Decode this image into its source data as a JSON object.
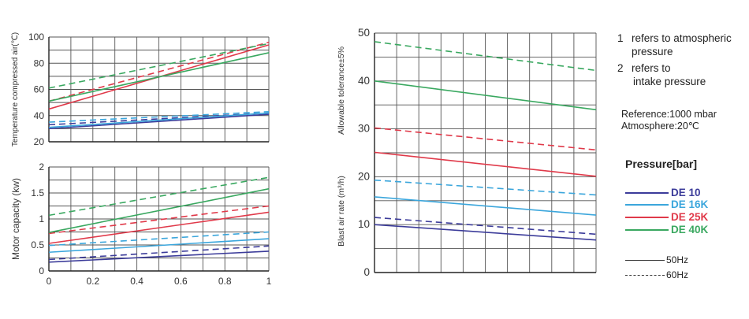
{
  "chart_data": [
    {
      "id": "temp",
      "type": "line",
      "title": "",
      "xlabel": "",
      "ylabel": "Temperature compressed air(℃)",
      "xlim": [
        0,
        1
      ],
      "ylim": [
        20,
        100
      ],
      "yticks": [
        "20",
        "40",
        "60",
        "80",
        "100"
      ],
      "xticks": [],
      "grid": true,
      "series": [
        {
          "name": "DE 10 50Hz",
          "color": "#3c3c9a",
          "dash": false,
          "x": [
            0,
            1
          ],
          "y": [
            30,
            41
          ]
        },
        {
          "name": "DE 10 60Hz",
          "color": "#3c3c9a",
          "dash": true,
          "x": [
            0,
            1
          ],
          "y": [
            33,
            42
          ]
        },
        {
          "name": "DE 16K 50Hz",
          "color": "#3ba6dc",
          "dash": false,
          "x": [
            0,
            1
          ],
          "y": [
            31,
            42
          ]
        },
        {
          "name": "DE 16K 60Hz",
          "color": "#3ba6dc",
          "dash": true,
          "x": [
            0,
            1
          ],
          "y": [
            35,
            43
          ]
        },
        {
          "name": "DE 25K 50Hz",
          "color": "#e03a4a",
          "dash": false,
          "x": [
            0,
            1
          ],
          "y": [
            45,
            94
          ]
        },
        {
          "name": "DE 25K 60Hz",
          "color": "#e03a4a",
          "dash": true,
          "x": [
            0,
            1
          ],
          "y": [
            51,
            96
          ]
        },
        {
          "name": "DE 40K 50Hz",
          "color": "#3aa860",
          "dash": false,
          "x": [
            0,
            1
          ],
          "y": [
            51,
            88
          ]
        },
        {
          "name": "DE 40K 60Hz",
          "color": "#3aa860",
          "dash": true,
          "x": [
            0,
            1
          ],
          "y": [
            61,
            95
          ]
        }
      ]
    },
    {
      "id": "motor",
      "type": "line",
      "title": "",
      "xlabel": "",
      "ylabel": "Motor capacity (kw)",
      "xlim": [
        0,
        1
      ],
      "ylim": [
        0,
        2
      ],
      "yticks": [
        "0",
        "0.5",
        "1",
        "1.5",
        "2"
      ],
      "xticks": [
        "0",
        "0.2",
        "0.4",
        "0.6",
        "0.8",
        "1"
      ],
      "grid": true,
      "series": [
        {
          "name": "DE 10 50Hz",
          "color": "#3c3c9a",
          "dash": false,
          "x": [
            0,
            1
          ],
          "y": [
            0.17,
            0.38
          ]
        },
        {
          "name": "DE 10 60Hz",
          "color": "#3c3c9a",
          "dash": true,
          "x": [
            0,
            1
          ],
          "y": [
            0.22,
            0.48
          ]
        },
        {
          "name": "DE 16K 50Hz",
          "color": "#3ba6dc",
          "dash": false,
          "x": [
            0,
            1
          ],
          "y": [
            0.36,
            0.62
          ]
        },
        {
          "name": "DE 16K 60Hz",
          "color": "#3ba6dc",
          "dash": true,
          "x": [
            0,
            1
          ],
          "y": [
            0.49,
            0.75
          ]
        },
        {
          "name": "DE 25K 50Hz",
          "color": "#e03a4a",
          "dash": false,
          "x": [
            0,
            1
          ],
          "y": [
            0.53,
            1.13
          ]
        },
        {
          "name": "DE 25K 60Hz",
          "color": "#e03a4a",
          "dash": true,
          "x": [
            0,
            1
          ],
          "y": [
            0.72,
            1.25
          ]
        },
        {
          "name": "DE 40K 50Hz",
          "color": "#3aa860",
          "dash": false,
          "x": [
            0,
            1
          ],
          "y": [
            0.74,
            1.58
          ]
        },
        {
          "name": "DE 40K 60Hz",
          "color": "#3aa860",
          "dash": true,
          "x": [
            0,
            1
          ],
          "y": [
            1.07,
            1.8
          ]
        }
      ]
    },
    {
      "id": "blast",
      "type": "line",
      "title": "",
      "xlabel": "",
      "ylabel": "Blast air rate (m³/h)",
      "ylabel2": "Allowable tolerance±5%",
      "xlim": [
        0,
        1
      ],
      "ylim": [
        0,
        50
      ],
      "yticks": [
        "0",
        "10",
        "20",
        "30",
        "40",
        "50"
      ],
      "xticks": [],
      "grid": true,
      "series": [
        {
          "name": "DE 10 50Hz",
          "color": "#3c3c9a",
          "dash": false,
          "x": [
            0,
            1
          ],
          "y": [
            10,
            6.8
          ]
        },
        {
          "name": "DE 10 60Hz",
          "color": "#3c3c9a",
          "dash": true,
          "x": [
            0,
            1
          ],
          "y": [
            11.5,
            8
          ]
        },
        {
          "name": "DE 16K 50Hz",
          "color": "#3ba6dc",
          "dash": false,
          "x": [
            0,
            1
          ],
          "y": [
            15.8,
            12
          ]
        },
        {
          "name": "DE 16K 60Hz",
          "color": "#3ba6dc",
          "dash": true,
          "x": [
            0,
            1
          ],
          "y": [
            19.3,
            16.2
          ]
        },
        {
          "name": "DE 25K 50Hz",
          "color": "#e03a4a",
          "dash": false,
          "x": [
            0,
            1
          ],
          "y": [
            25.1,
            20.1
          ]
        },
        {
          "name": "DE 25K 60Hz",
          "color": "#e03a4a",
          "dash": true,
          "x": [
            0,
            1
          ],
          "y": [
            30.2,
            25.6
          ]
        },
        {
          "name": "DE 40K 50Hz",
          "color": "#3aa860",
          "dash": false,
          "x": [
            0,
            1
          ],
          "y": [
            40,
            34
          ]
        },
        {
          "name": "DE 40K 60Hz",
          "color": "#3aa860",
          "dash": true,
          "x": [
            0,
            1
          ],
          "y": [
            48.2,
            42.2
          ]
        }
      ]
    }
  ],
  "notes": {
    "n1_num": "1",
    "n1_text_a": "refers to atmospheric",
    "n1_text_b": "pressure",
    "n2_num": "2",
    "n2_text_a": "refers to",
    "n2_text_b": "intake pressure",
    "reference": "Reference:1000 mbar",
    "atmosphere": "Atmosphere:20℃"
  },
  "legend": {
    "title": "Pressure[bar]",
    "items": [
      {
        "label": "DE 10",
        "color": "#3c3c9a"
      },
      {
        "label": "DE 16K",
        "color": "#3ba6dc"
      },
      {
        "label": "DE 25K",
        "color": "#e03a4a"
      },
      {
        "label": "DE 40K",
        "color": "#3aa860"
      }
    ],
    "styles": [
      {
        "label": "50Hz",
        "dash": false
      },
      {
        "label": "60Hz",
        "dash": true
      }
    ]
  }
}
